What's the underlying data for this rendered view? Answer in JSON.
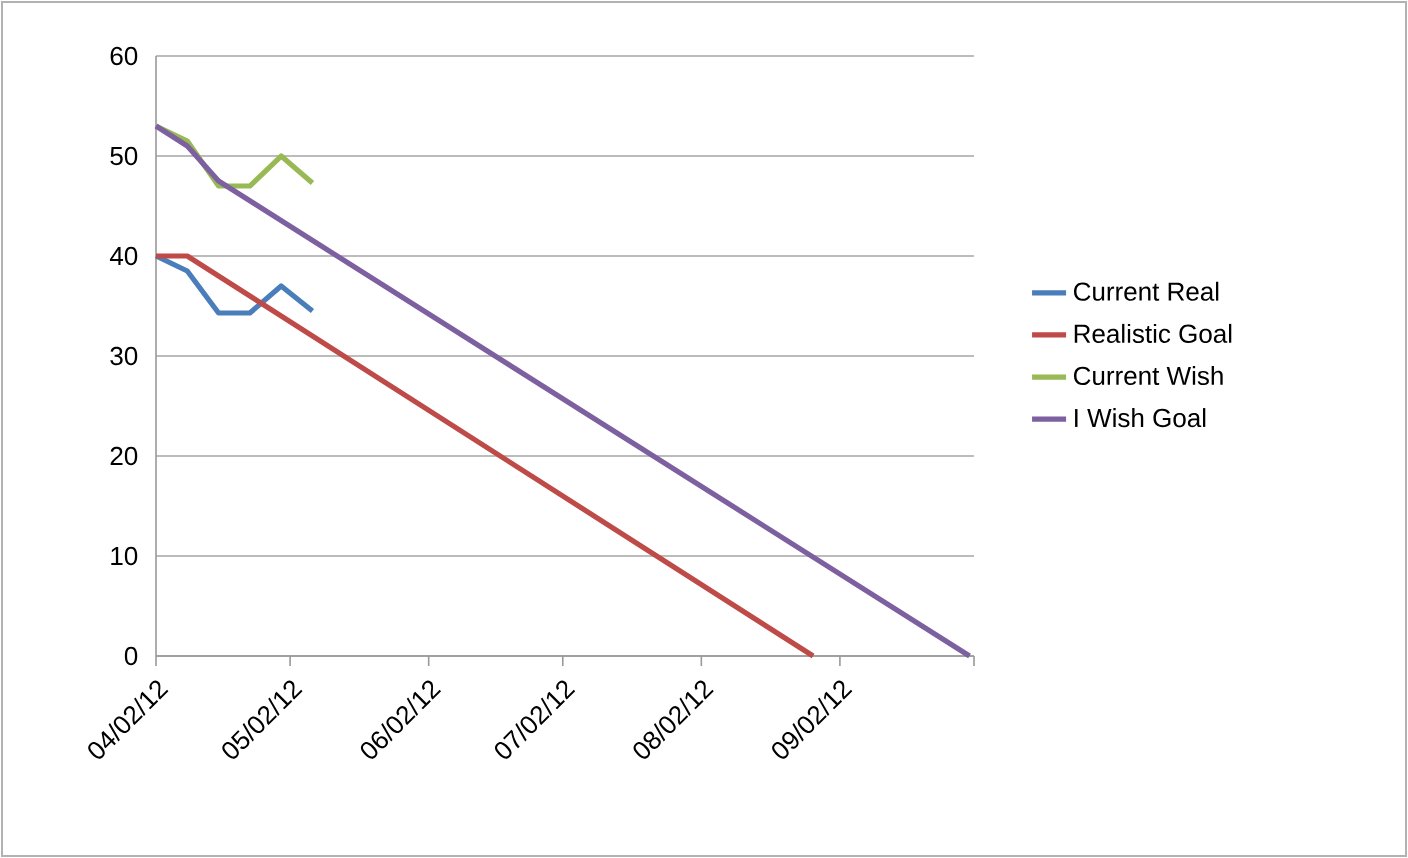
{
  "chart_data": {
    "type": "line",
    "xlim": [
      "2012-04-02",
      "2012-10-02"
    ],
    "xticks": [
      {
        "value": "2012-04-02",
        "label": "04/02/12"
      },
      {
        "value": "2012-05-02",
        "label": "05/02/12"
      },
      {
        "value": "2012-06-02",
        "label": "06/02/12"
      },
      {
        "value": "2012-07-02",
        "label": "07/02/12"
      },
      {
        "value": "2012-08-02",
        "label": "08/02/12"
      },
      {
        "value": "2012-09-02",
        "label": "09/02/12"
      },
      {
        "value": "2012-10-02",
        "label": null
      }
    ],
    "ylim": [
      0,
      60
    ],
    "yticks": [
      0,
      10,
      20,
      30,
      40,
      50,
      60
    ],
    "grid": "y",
    "legend": "right",
    "marker": "none",
    "line_style": "solid",
    "series": [
      {
        "name": "Current Real",
        "color": "#4a7ebb",
        "x": [
          "2012-04-02",
          "2012-04-09",
          "2012-04-16",
          "2012-04-23",
          "2012-04-30",
          "2012-05-07"
        ],
        "values": [
          40,
          38.5,
          34.3,
          34.3,
          37,
          34.5
        ]
      },
      {
        "name": "Realistic Goal",
        "color": "#be4b48",
        "x": [
          "2012-04-02",
          "2012-04-09",
          "2012-08-27"
        ],
        "values": [
          40,
          40,
          0
        ]
      },
      {
        "name": "Current Wish",
        "color": "#98b954",
        "x": [
          "2012-04-02",
          "2012-04-09",
          "2012-04-16",
          "2012-04-23",
          "2012-04-30",
          "2012-05-07"
        ],
        "values": [
          53,
          51.5,
          47,
          47,
          50,
          47.3
        ]
      },
      {
        "name": "I Wish Goal",
        "color": "#7d60a0",
        "x": [
          "2012-04-02",
          "2012-04-09",
          "2012-04-16",
          "2012-10-01"
        ],
        "values": [
          53,
          51,
          47.5,
          0
        ]
      }
    ]
  }
}
